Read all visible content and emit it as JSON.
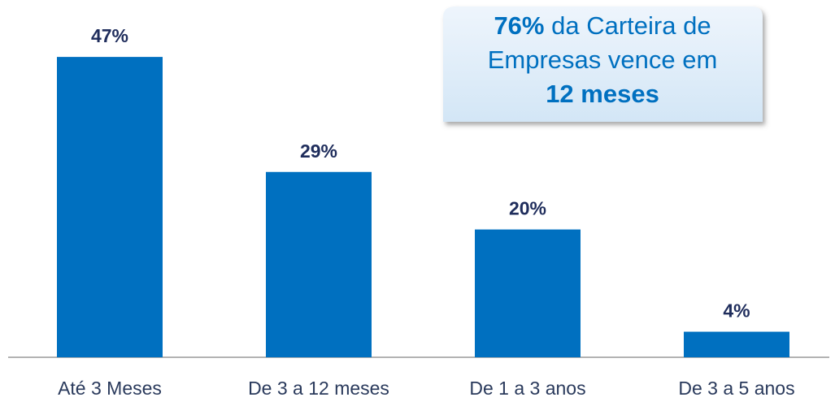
{
  "chart_data": {
    "type": "bar",
    "categories": [
      "Até 3 Meses",
      "De 3 a 12 meses",
      "De 1 a 3 anos",
      "De 3 a 5 anos"
    ],
    "values": [
      47,
      29,
      20,
      4
    ],
    "value_labels": [
      "47%",
      "29%",
      "20%",
      "4%"
    ],
    "color": "#0070c0",
    "annotation": {
      "highlight": "76%",
      "lines": [
        "da Carteira de",
        "Empresas vence em"
      ],
      "emphasis": "12 meses"
    }
  }
}
